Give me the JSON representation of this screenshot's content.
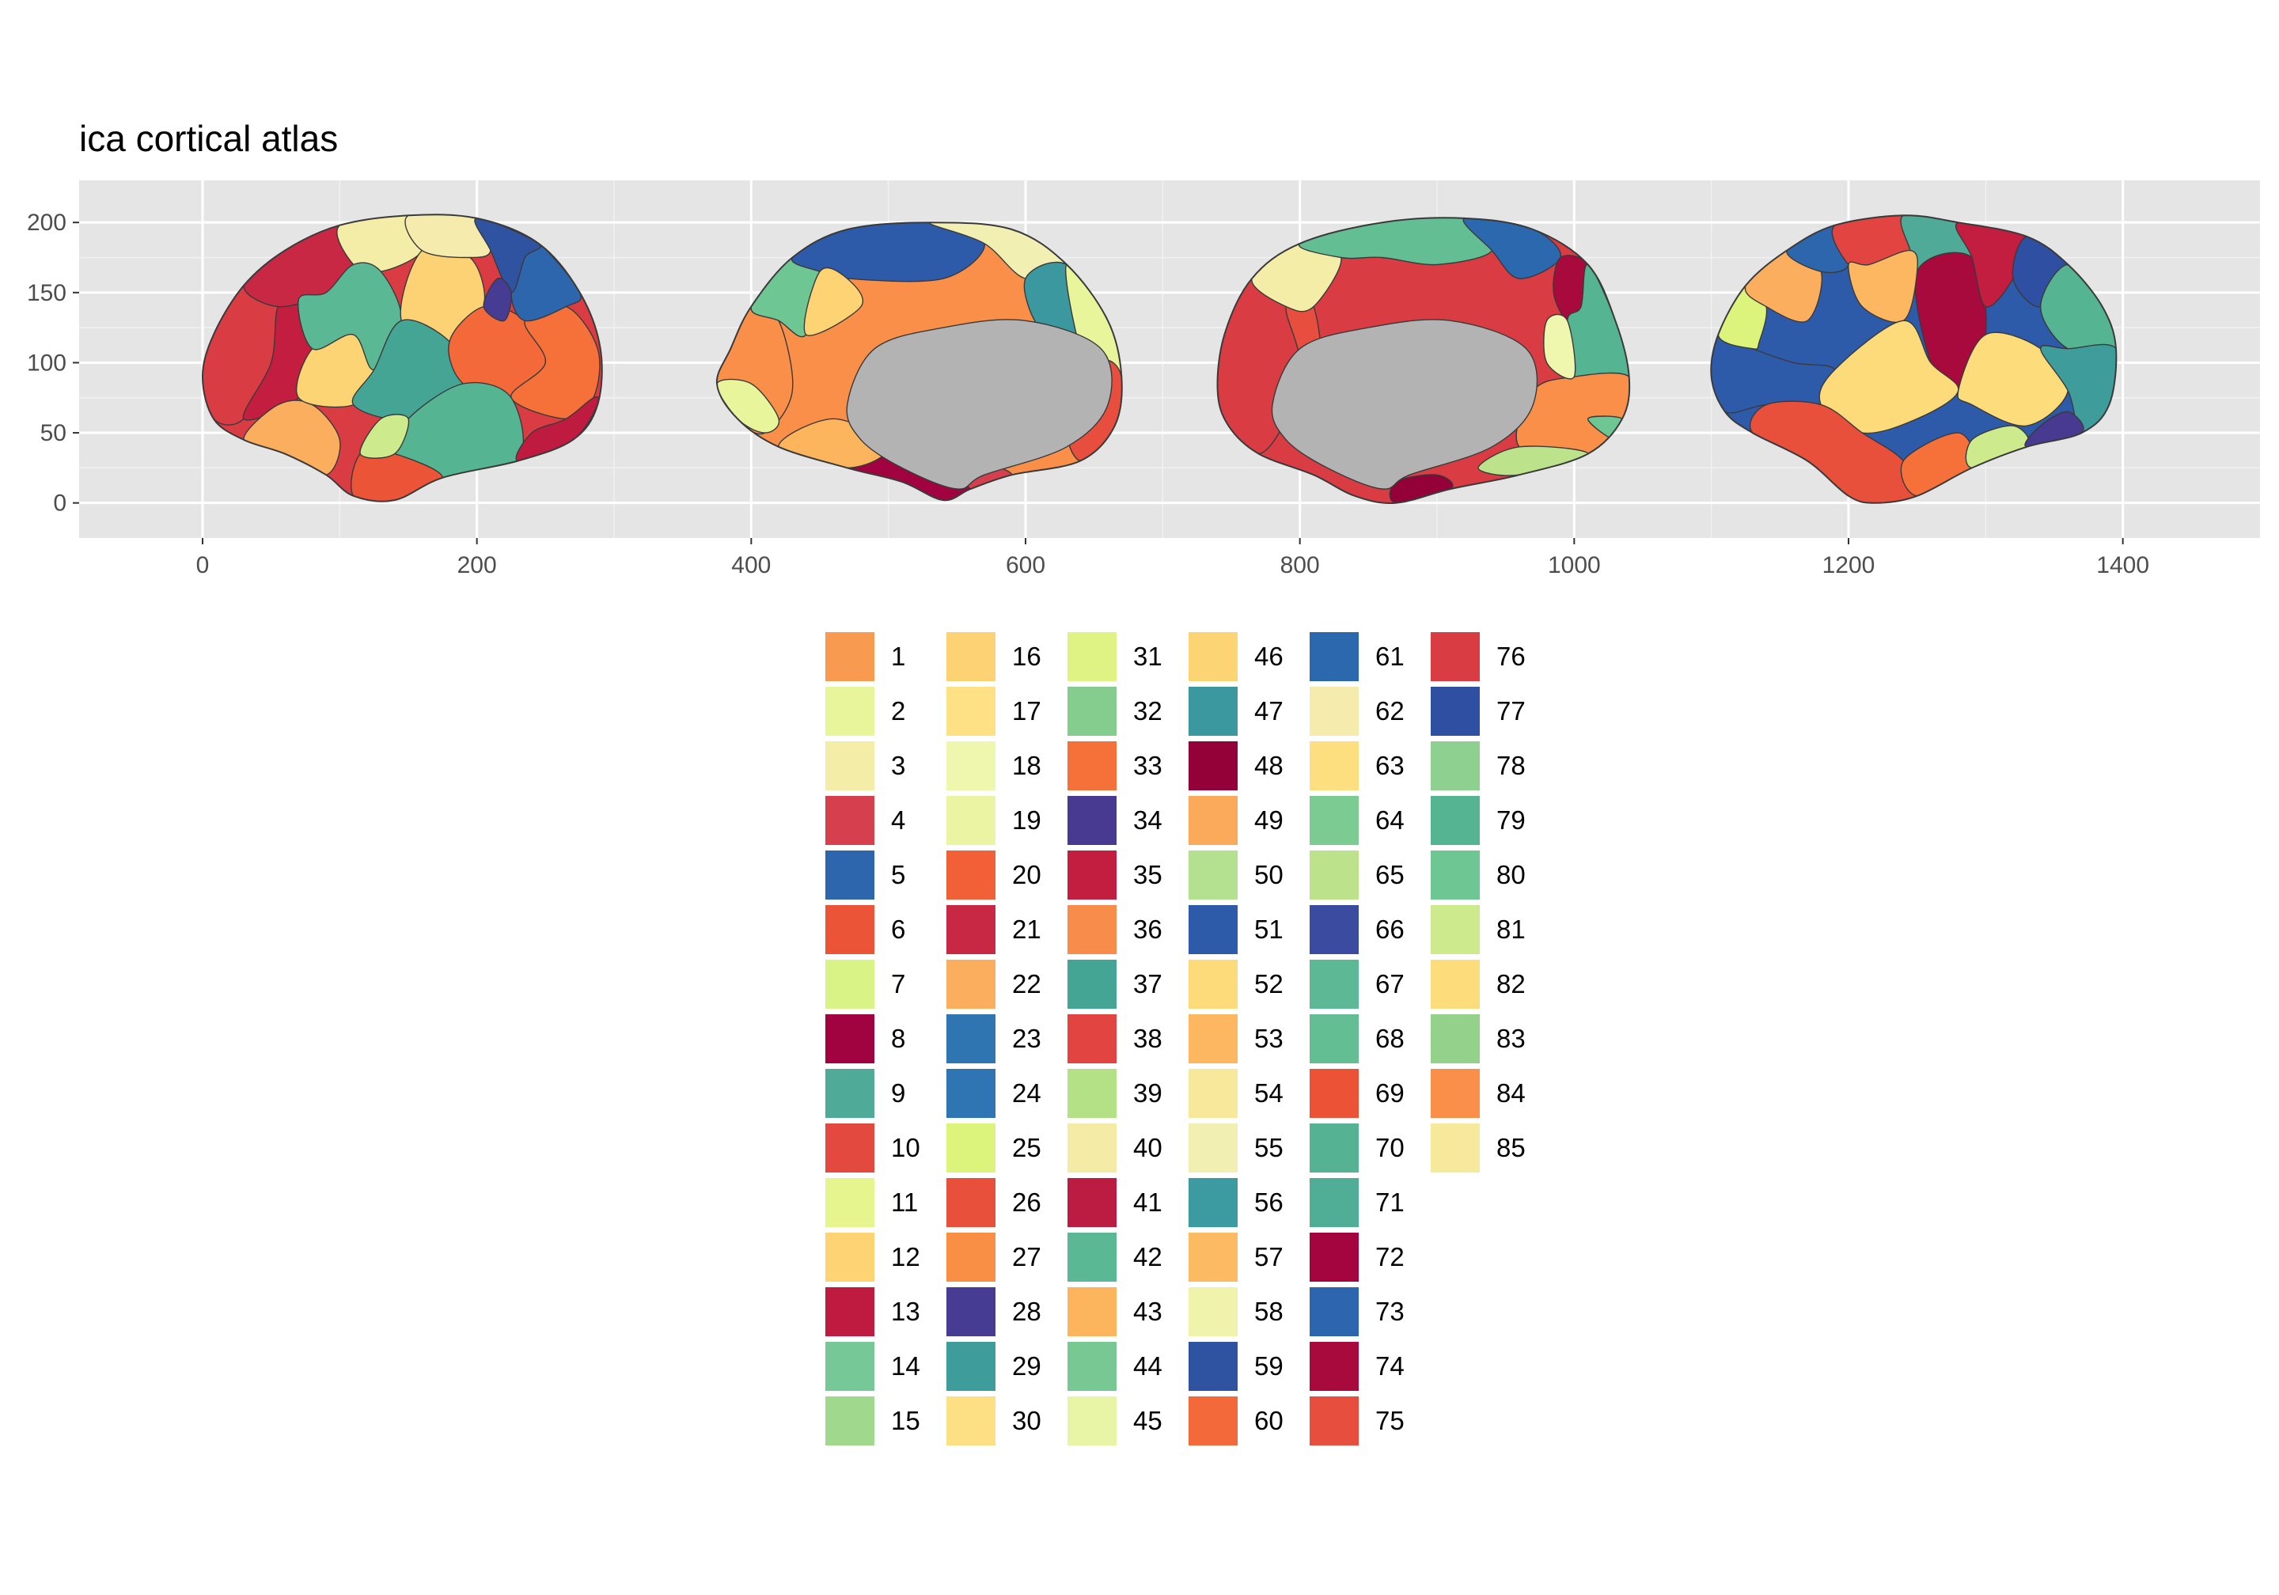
{
  "chart_data": {
    "type": "other",
    "title": "ica cortical atlas",
    "xlabel": "",
    "ylabel": "",
    "xlim": [
      -90,
      1500
    ],
    "ylim": [
      -25,
      230
    ],
    "x_ticks": [
      0,
      200,
      400,
      600,
      800,
      1000,
      1200,
      1400
    ],
    "x_tick_labels": [
      "0",
      "200",
      "400",
      "600",
      "800",
      "1000",
      "1200",
      "1400"
    ],
    "y_ticks": [
      0,
      50,
      100,
      150,
      200
    ],
    "y_tick_labels": [
      "0",
      "50",
      "100",
      "150",
      "200"
    ],
    "grid": true,
    "panel_background": "#e5e5e5",
    "legend_position": "bottom",
    "legend_columns": 6,
    "legend": [
      {
        "label": "1",
        "color": "#f89a4f"
      },
      {
        "label": "2",
        "color": "#e8f59a"
      },
      {
        "label": "3",
        "color": "#f4eda7"
      },
      {
        "label": "4",
        "color": "#d6404e"
      },
      {
        "label": "5",
        "color": "#2e66ad"
      },
      {
        "label": "6",
        "color": "#ec5437"
      },
      {
        "label": "7",
        "color": "#daf387"
      },
      {
        "label": "8",
        "color": "#a10340"
      },
      {
        "label": "9",
        "color": "#4fab98"
      },
      {
        "label": "10",
        "color": "#e3493f"
      },
      {
        "label": "11",
        "color": "#e6f58e"
      },
      {
        "label": "12",
        "color": "#fdd373"
      },
      {
        "label": "13",
        "color": "#bf1a3f"
      },
      {
        "label": "14",
        "color": "#76c897"
      },
      {
        "label": "15",
        "color": "#a0d88e"
      },
      {
        "label": "16",
        "color": "#fdd275"
      },
      {
        "label": "17",
        "color": "#fde184"
      },
      {
        "label": "18",
        "color": "#eef7ad"
      },
      {
        "label": "19",
        "color": "#eaf4a2"
      },
      {
        "label": "20",
        "color": "#f16036"
      },
      {
        "label": "21",
        "color": "#c92845"
      },
      {
        "label": "22",
        "color": "#fbae5d"
      },
      {
        "label": "23",
        "color": "#2e75b2"
      },
      {
        "label": "24",
        "color": "#2f75b3"
      },
      {
        "label": "25",
        "color": "#dcf37c"
      },
      {
        "label": "26",
        "color": "#e9503b"
      },
      {
        "label": "27",
        "color": "#f98e45"
      },
      {
        "label": "28",
        "color": "#463c93"
      },
      {
        "label": "29",
        "color": "#3e9d9b"
      },
      {
        "label": "30",
        "color": "#fee084"
      },
      {
        "label": "31",
        "color": "#dff384"
      },
      {
        "label": "32",
        "color": "#85cc8f"
      },
      {
        "label": "33",
        "color": "#f6713a"
      },
      {
        "label": "34",
        "color": "#483a90"
      },
      {
        "label": "35",
        "color": "#c31d40"
      },
      {
        "label": "36",
        "color": "#f88d4b"
      },
      {
        "label": "37",
        "color": "#44a595"
      },
      {
        "label": "38",
        "color": "#e24541"
      },
      {
        "label": "39",
        "color": "#b4e185"
      },
      {
        "label": "40",
        "color": "#f3eba6"
      },
      {
        "label": "41",
        "color": "#bc1c42"
      },
      {
        "label": "42",
        "color": "#5ab994"
      },
      {
        "label": "43",
        "color": "#fcb55c"
      },
      {
        "label": "44",
        "color": "#78c893"
      },
      {
        "label": "45",
        "color": "#e9f5a6"
      },
      {
        "label": "46",
        "color": "#fdd474"
      },
      {
        "label": "47",
        "color": "#3b989e"
      },
      {
        "label": "48",
        "color": "#940139"
      },
      {
        "label": "49",
        "color": "#fba95a"
      },
      {
        "label": "50",
        "color": "#b3e18f"
      },
      {
        "label": "51",
        "color": "#2d5aa9"
      },
      {
        "label": "52",
        "color": "#fedb7a"
      },
      {
        "label": "53",
        "color": "#fcb760"
      },
      {
        "label": "54",
        "color": "#f7e89b"
      },
      {
        "label": "55",
        "color": "#f2efb3"
      },
      {
        "label": "56",
        "color": "#3c9ba0"
      },
      {
        "label": "57",
        "color": "#fcbb63"
      },
      {
        "label": "58",
        "color": "#f0f3ac"
      },
      {
        "label": "59",
        "color": "#2f52a1"
      },
      {
        "label": "60",
        "color": "#f3693a"
      },
      {
        "label": "61",
        "color": "#2b68ae"
      },
      {
        "label": "62",
        "color": "#f4ebac"
      },
      {
        "label": "63",
        "color": "#fedf80"
      },
      {
        "label": "64",
        "color": "#7ccb92"
      },
      {
        "label": "65",
        "color": "#bce38b"
      },
      {
        "label": "66",
        "color": "#3b4b9f"
      },
      {
        "label": "67",
        "color": "#5cb895"
      },
      {
        "label": "68",
        "color": "#63bf93"
      },
      {
        "label": "69",
        "color": "#ec5235"
      },
      {
        "label": "70",
        "color": "#55b393"
      },
      {
        "label": "71",
        "color": "#51ae96"
      },
      {
        "label": "72",
        "color": "#a5053f"
      },
      {
        "label": "73",
        "color": "#2d65ae"
      },
      {
        "label": "74",
        "color": "#a80a3d"
      },
      {
        "label": "75",
        "color": "#e74e3e"
      },
      {
        "label": "76",
        "color": "#da3c43"
      },
      {
        "label": "77",
        "color": "#2f4fa3"
      },
      {
        "label": "78",
        "color": "#8ed08f"
      },
      {
        "label": "79",
        "color": "#55b492"
      },
      {
        "label": "80",
        "color": "#6ec693"
      },
      {
        "label": "81",
        "color": "#cdeb8c"
      },
      {
        "label": "82",
        "color": "#fddc7b"
      },
      {
        "label": "83",
        "color": "#94d18a"
      },
      {
        "label": "84",
        "color": "#f98f49"
      },
      {
        "label": "85",
        "color": "#f7e99c"
      }
    ],
    "views": [
      {
        "hemisphere": "left",
        "side": "lateral",
        "x_range": [
          0,
          290
        ],
        "y_range": [
          0,
          205
        ]
      },
      {
        "hemisphere": "left",
        "side": "medial",
        "x_range": [
          370,
          670
        ],
        "y_range": [
          0,
          200
        ]
      },
      {
        "hemisphere": "right",
        "side": "medial",
        "x_range": [
          730,
          1040
        ],
        "y_range": [
          0,
          200
        ]
      },
      {
        "hemisphere": "right",
        "side": "lateral",
        "x_range": [
          1100,
          1400
        ],
        "y_range": [
          0,
          205
        ]
      }
    ]
  }
}
